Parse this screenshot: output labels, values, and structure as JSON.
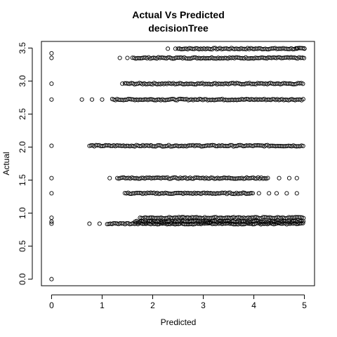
{
  "chart_data": {
    "type": "scatter",
    "title": "Actual Vs Predicted",
    "subtitle": "decisionTree",
    "xlabel": "Predicted",
    "ylabel": "Actual",
    "xlim": [
      -0.2,
      5.2
    ],
    "ylim": [
      -0.1,
      3.6
    ],
    "x_ticks": [
      "0",
      "1",
      "2",
      "3",
      "4",
      "5"
    ],
    "y_ticks": [
      "0.0",
      "0.5",
      "1.0",
      "1.5",
      "2.0",
      "2.5",
      "3.0",
      "3.5"
    ],
    "grid": false,
    "legend": "none",
    "marker": "open-circle",
    "point_color": "#000000",
    "series": [
      {
        "name": "",
        "bands": [
          {
            "y": 3.49,
            "x": [
              0,
              0.0
            ],
            "dense": [
              2.5,
              5.0
            ],
            "sparse": [
              2.3,
              2.45,
              4.85,
              5.0
            ]
          },
          {
            "y": 3.42,
            "x": [
              0,
              0.0
            ],
            "dense": [],
            "sparse": [
              0
            ]
          },
          {
            "y": 3.35,
            "x": [
              0,
              0.0
            ],
            "dense": [
              1.6,
              5.0
            ],
            "sparse": [
              0,
              1.35,
              1.5
            ]
          },
          {
            "y": 2.96,
            "x": [
              0,
              0.0
            ],
            "dense": [
              1.45,
              5.0
            ],
            "sparse": [
              0,
              1.4
            ]
          },
          {
            "y": 2.72,
            "x": [
              0,
              0.0
            ],
            "dense": [
              1.2,
              5.0
            ],
            "sparse": [
              0,
              0.6,
              0.8,
              1.0
            ]
          },
          {
            "y": 2.02,
            "x": [
              0,
              0.0
            ],
            "dense": [
              0.75,
              5.0
            ],
            "sparse": [
              0
            ]
          },
          {
            "y": 1.53,
            "x": [
              0,
              0.0
            ],
            "dense": [
              1.3,
              4.3
            ],
            "sparse": [
              0,
              1.15,
              4.5,
              4.7,
              4.85
            ]
          },
          {
            "y": 1.3,
            "x": [
              0,
              0.0
            ],
            "dense": [
              1.45,
              4.0
            ],
            "sparse": [
              0,
              4.1,
              4.3,
              4.45,
              4.65,
              4.85
            ]
          },
          {
            "y": 0.93,
            "x": [
              0,
              0.0
            ],
            "dense": [
              1.75,
              5.0
            ],
            "sparse": [
              0
            ]
          },
          {
            "y": 0.87,
            "x": [
              0,
              0.0
            ],
            "dense": [
              1.65,
              5.0
            ],
            "sparse": [
              0
            ]
          },
          {
            "y": 0.84,
            "x": [
              0,
              0.0
            ],
            "dense": [
              1.1,
              5.0
            ],
            "sparse": [
              0,
              0.75,
              0.95
            ]
          },
          {
            "y": 0.0,
            "x": [
              0,
              0.0
            ],
            "dense": [],
            "sparse": [
              0
            ]
          }
        ]
      }
    ]
  }
}
